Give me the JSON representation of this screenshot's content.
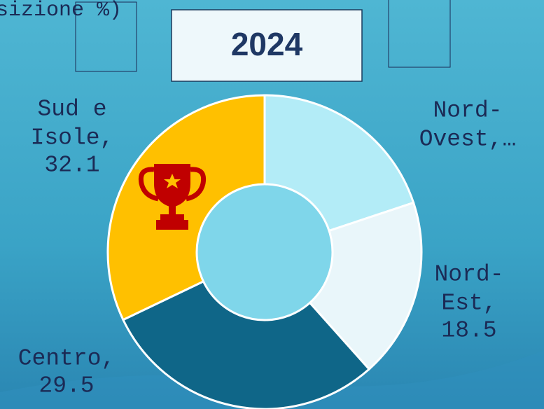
{
  "title_fragment": "sizione %)",
  "chart_data": {
    "type": "donut",
    "title": "2024",
    "labels": [
      [
        "Nord-",
        "Ovest,…"
      ],
      [
        "Nord-",
        "Est,"
      ],
      [
        "Centro,"
      ],
      [
        "Sud e",
        "Isole,"
      ]
    ],
    "values": [
      19.9,
      18.5,
      29.5,
      32.1
    ],
    "value_labels": [
      null,
      "18.5",
      "29.5",
      "32.1"
    ],
    "colors": [
      "#b3ecf7",
      "#e9f6fa",
      "#0f6688",
      "#ffc000"
    ]
  }
}
